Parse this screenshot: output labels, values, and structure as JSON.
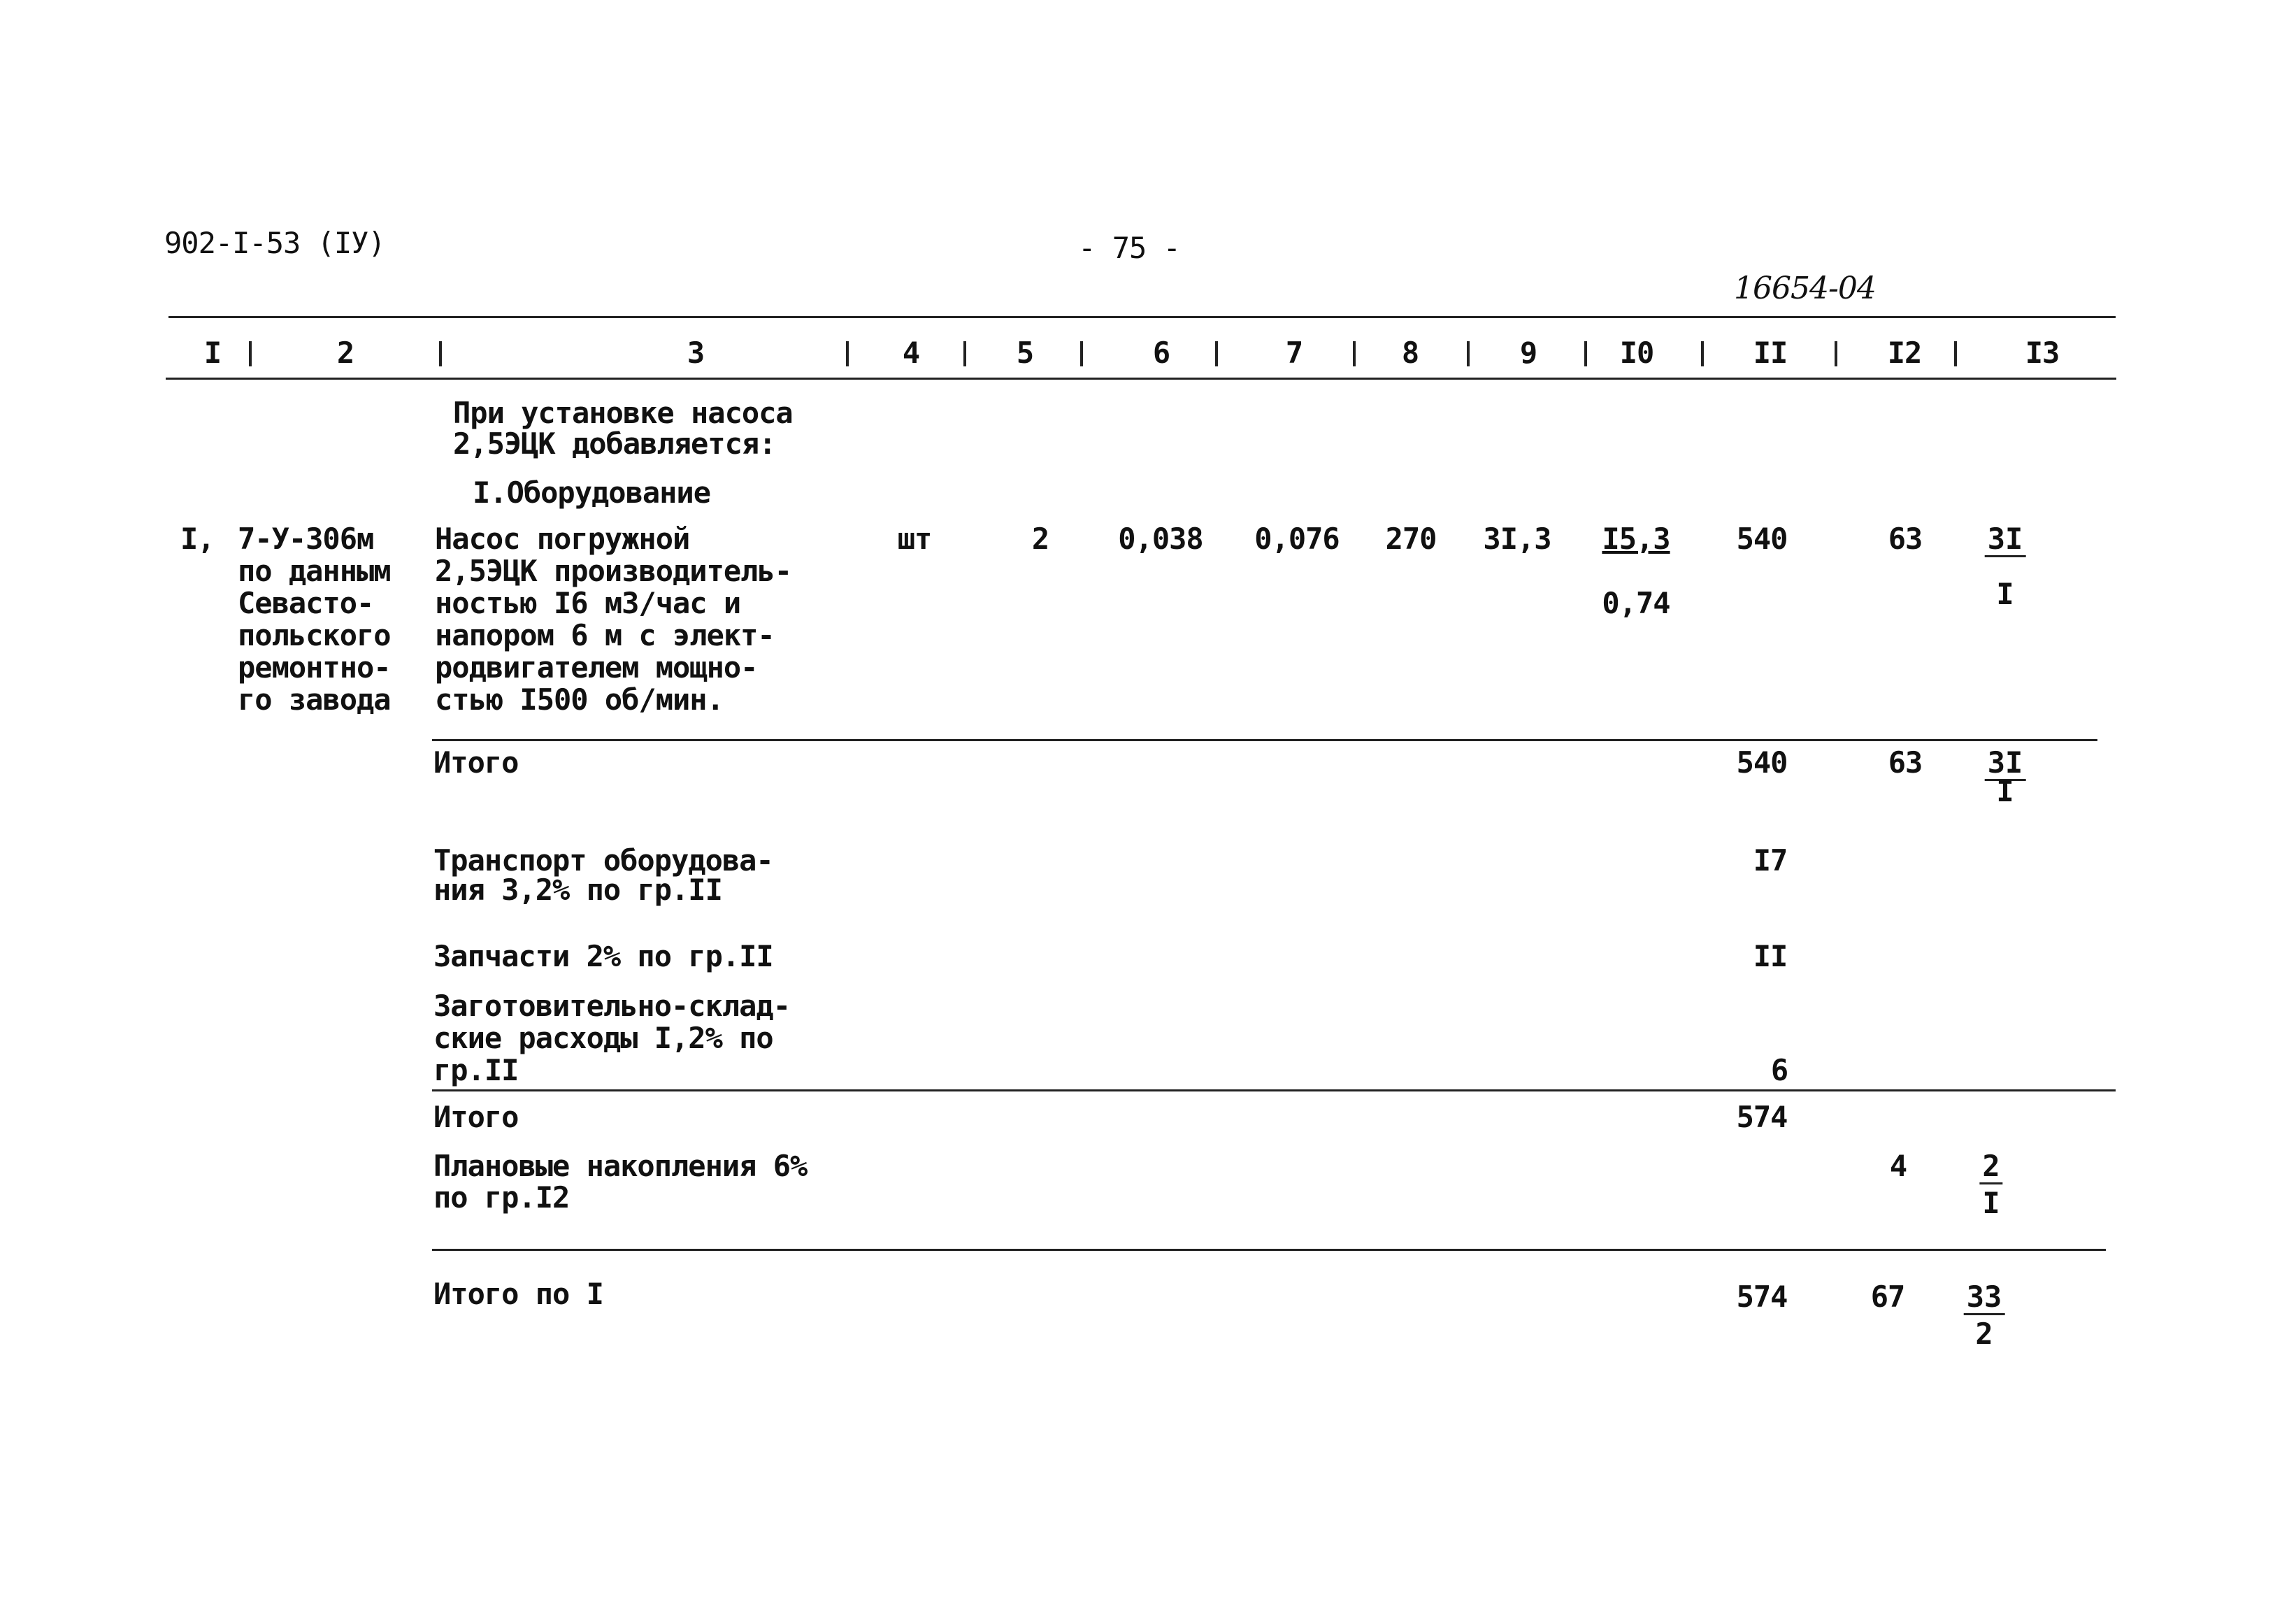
{
  "header": {
    "doc_code": "902-I-53 (IУ)",
    "page_number": "- 75 -",
    "handwritten_number": "16654-04"
  },
  "columns": [
    "I",
    "2",
    "3",
    "4",
    "5",
    "6",
    "7",
    "8",
    "9",
    "I0",
    "II",
    "I2",
    "I3"
  ],
  "intro": [
    "При установке насоса",
    "2,5ЭЦК добавляется:"
  ],
  "section_title": "I.Оборудование",
  "item": {
    "num": "I,",
    "code": [
      "7-У-306м",
      "по данным",
      "Севасто-",
      "польского",
      "ремонтно-",
      "го завода"
    ],
    "desc": [
      "Насос погружной",
      "2,5ЭЦК производитель-",
      "ностью I6 м3/час и",
      "напором 6 м с элект-",
      "родвигателем мощно-",
      "стью I500 об/мин."
    ],
    "unit": "шт",
    "qty": "2",
    "c6": "0,038",
    "c7": "0,076",
    "c8": "270",
    "c9": "3I,3",
    "c10_top": "I5,3",
    "c10_bottom": "0,74",
    "c11": "540",
    "c12": "63",
    "c13_top": "3I",
    "c13_bottom": "I"
  },
  "rows": {
    "subtotal1": {
      "label": "Итого",
      "c11": "540",
      "c12": "63",
      "c13_top": "3I",
      "c13_bottom": "I"
    },
    "transport": {
      "label": [
        "Транспорт оборудова-",
        "ния 3,2% по гр.II"
      ],
      "c11": "I7"
    },
    "spares": {
      "label": "Запчасти 2% по гр.II",
      "c11": "II"
    },
    "procurement": {
      "label": [
        "Заготовительно-склад-",
        "ские расходы I,2% по",
        "гр.II"
      ],
      "c11": "6"
    },
    "subtotal2": {
      "label": "Итого",
      "c11": "574"
    },
    "planned": {
      "label": [
        "Плановые накопления 6%",
        "по гр.I2"
      ],
      "c12": "4",
      "c13_top": "2",
      "c13_bottom": "I"
    },
    "total": {
      "label": "Итого по I",
      "c11": "574",
      "c12": "67",
      "c13_top": "33",
      "c13_bottom": "2"
    }
  }
}
